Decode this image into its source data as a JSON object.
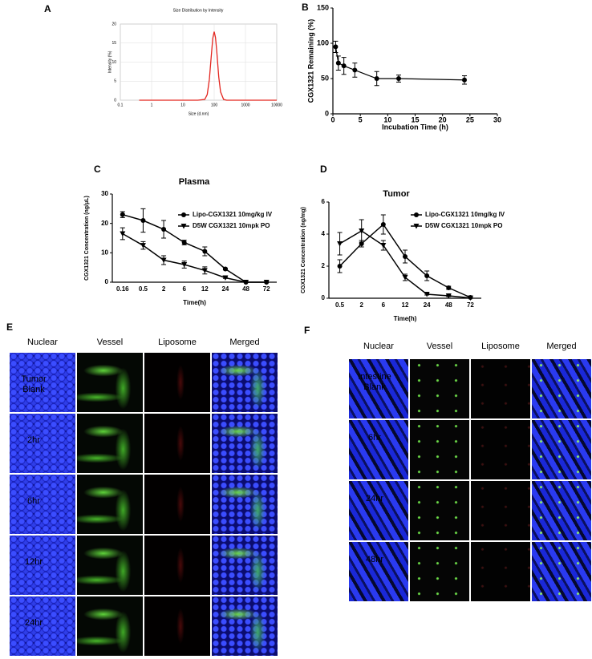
{
  "chart_data": [
    {
      "type": "line",
      "panel": "A",
      "title": "Size Distribution by Intensity",
      "xlabel": "Size (d.nm)",
      "ylabel": "Intensity (%)",
      "x": [
        0.4,
        30,
        50,
        60,
        70,
        80,
        90,
        100,
        110,
        120,
        140,
        160,
        200,
        250,
        10000
      ],
      "values": [
        0,
        0,
        0.2,
        1.5,
        5.4,
        11.2,
        16.2,
        18,
        16.5,
        13.2,
        6.1,
        2.2,
        0.2,
        0,
        0
      ],
      "color": "#e3261f",
      "xscale": "log",
      "xlim": [
        0.1,
        10000
      ],
      "xticks": [
        0.1,
        1,
        10,
        100,
        1000,
        10000
      ],
      "ylim": [
        0,
        20
      ],
      "yticks": [
        0,
        5,
        10,
        15,
        20
      ],
      "grid": true
    },
    {
      "type": "errorline",
      "panel": "B",
      "xlabel": "Incubation Time (h)",
      "ylabel": "CGX1321 Remaining (%)",
      "x": [
        0.5,
        1,
        2,
        4,
        8,
        12,
        24
      ],
      "values": [
        95,
        72,
        68,
        62,
        50,
        50,
        48
      ],
      "errors": [
        8,
        10,
        12,
        10,
        10,
        5,
        6
      ],
      "color": "#000000",
      "marker": "circle",
      "xlim": [
        0,
        30
      ],
      "xticks": [
        0,
        5,
        10,
        15,
        20,
        25,
        30
      ],
      "ylim": [
        0,
        150
      ],
      "yticks": [
        0,
        50,
        100,
        150
      ],
      "grid": false
    },
    {
      "type": "category-line",
      "panel": "C",
      "title": "Plasma",
      "xlabel": "Time(h)",
      "ylabel": "CGX1321 Concentration (ng/μL)",
      "categories": [
        "0.16",
        "0.5",
        "2",
        "6",
        "12",
        "24",
        "48",
        "72"
      ],
      "series": [
        {
          "name": "Lipo-CGX1321 10mg/kg IV",
          "color": "#000000",
          "marker": "circle",
          "values": [
            23,
            21,
            18,
            13.5,
            10.5,
            4.5,
            0,
            0
          ],
          "errors": [
            1,
            4,
            3,
            0.8,
            1.5,
            0.3,
            0,
            0
          ]
        },
        {
          "name": "D5W CGX1321 10mpk PO",
          "color": "#000000",
          "marker": "triangle-down",
          "values": [
            16.5,
            12.5,
            7.5,
            6,
            4,
            1.5,
            0,
            0
          ],
          "errors": [
            2,
            1.3,
            1.5,
            1.2,
            1.2,
            0.2,
            0,
            0
          ]
        }
      ],
      "ylim": [
        0,
        30
      ],
      "yticks": [
        0,
        10,
        20,
        30
      ],
      "grid": false,
      "legend": "top-right"
    },
    {
      "type": "category-line",
      "panel": "D",
      "title": "Tumor",
      "xlabel": "Time(h)",
      "ylabel": "CGX1321 Concentration (ng/mg)",
      "categories": [
        "0.5",
        "2",
        "6",
        "12",
        "24",
        "48",
        "72"
      ],
      "series": [
        {
          "name": "Lipo-CGX1321 10mg/kg IV",
          "color": "#000000",
          "marker": "circle",
          "values": [
            2.0,
            3.4,
            4.6,
            2.6,
            1.4,
            0.65,
            0.05
          ],
          "errors": [
            0.4,
            0.2,
            0.6,
            0.4,
            0.3,
            0.1,
            0.05
          ]
        },
        {
          "name": "D5W CGX1321 10mpk PO",
          "color": "#000000",
          "marker": "triangle-down",
          "values": [
            3.4,
            4.2,
            3.3,
            1.3,
            0.25,
            0.15,
            0.02
          ],
          "errors": [
            0.7,
            0.7,
            0.3,
            0.2,
            0.05,
            0.05,
            0.02
          ]
        }
      ],
      "ylim": [
        0,
        6
      ],
      "yticks": [
        0,
        2,
        4,
        6
      ],
      "grid": false,
      "legend": "top-right"
    }
  ],
  "image_panels": [
    {
      "panel": "E",
      "columns": [
        "Nuclear",
        "Vessel",
        "Liposome",
        "Merged"
      ],
      "rows": [
        "Tumor Blank",
        "2hr",
        "6hr",
        "12hr",
        "24hr"
      ]
    },
    {
      "panel": "F",
      "columns": [
        "Nuclear",
        "Vessel",
        "Liposome",
        "Merged"
      ],
      "rows": [
        "Intestine Blank",
        "6hr",
        "24hr",
        "48hr"
      ]
    }
  ]
}
